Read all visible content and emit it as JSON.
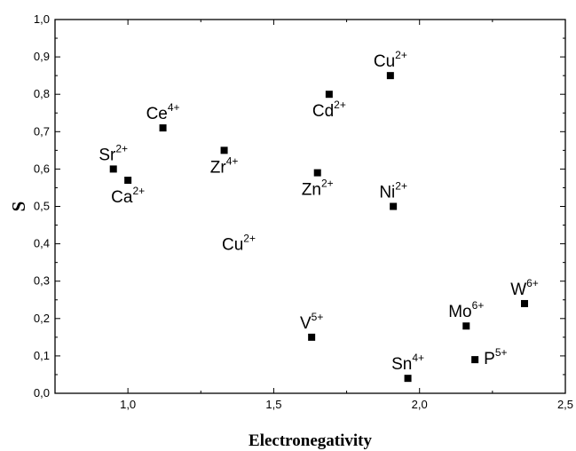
{
  "chart_data": {
    "type": "scatter",
    "title": "",
    "xlabel": "Electronegativity",
    "ylabel": "S",
    "xlim": [
      0.75,
      2.5
    ],
    "ylim": [
      0.0,
      1.0
    ],
    "xticks": [
      1.0,
      1.5,
      2.0,
      2.5
    ],
    "xtick_labels": [
      "1,0",
      "1,5",
      "2,0",
      "2,5"
    ],
    "yticks": [
      0.0,
      0.1,
      0.2,
      0.3,
      0.4,
      0.5,
      0.6,
      0.7,
      0.8,
      0.9,
      1.0
    ],
    "ytick_labels": [
      "0,0",
      "0,1",
      "0,2",
      "0,3",
      "0,4",
      "0,5",
      "0,6",
      "0,7",
      "0,8",
      "0,9",
      "1,0"
    ],
    "grid": false,
    "marker_color": "#000000",
    "points": [
      {
        "x": 0.95,
        "y": 0.6,
        "ion": "Sr",
        "charge": "2+",
        "label_anchor": "above"
      },
      {
        "x": 1.0,
        "y": 0.57,
        "ion": "Ca",
        "charge": "2+",
        "label_anchor": "below"
      },
      {
        "x": 1.12,
        "y": 0.71,
        "ion": "Ce",
        "charge": "4+",
        "label_anchor": "above"
      },
      {
        "x": 1.33,
        "y": 0.65,
        "ion": "Zr",
        "charge": "4+",
        "label_anchor": "below"
      },
      {
        "x": 1.63,
        "y": 0.15,
        "ion": "V",
        "charge": "5+",
        "label_anchor": "above"
      },
      {
        "x": 1.65,
        "y": 0.59,
        "ion": "Zn",
        "charge": "2+",
        "label_anchor": "below"
      },
      {
        "x": 1.69,
        "y": 0.8,
        "ion": "Cd",
        "charge": "2+",
        "label_anchor": "below"
      },
      {
        "x": 1.9,
        "y": 0.85,
        "ion": "Cu",
        "charge": "2+",
        "label_anchor": "above"
      },
      {
        "x": 1.91,
        "y": 0.5,
        "ion": "Ni",
        "charge": "2+",
        "label_anchor": "above"
      },
      {
        "x": 1.96,
        "y": 0.04,
        "ion": "Sn",
        "charge": "4+",
        "label_anchor": "above"
      },
      {
        "x": 2.16,
        "y": 0.18,
        "ion": "Mo",
        "charge": "6+",
        "label_anchor": "above"
      },
      {
        "x": 2.19,
        "y": 0.09,
        "ion": "P",
        "charge": "5+",
        "label_anchor": "right"
      },
      {
        "x": 2.36,
        "y": 0.24,
        "ion": "W",
        "charge": "6+",
        "label_anchor": "above"
      }
    ],
    "annotations": [
      {
        "x": 1.38,
        "y": 0.4,
        "ion": "Cu",
        "charge": "2+"
      }
    ]
  }
}
